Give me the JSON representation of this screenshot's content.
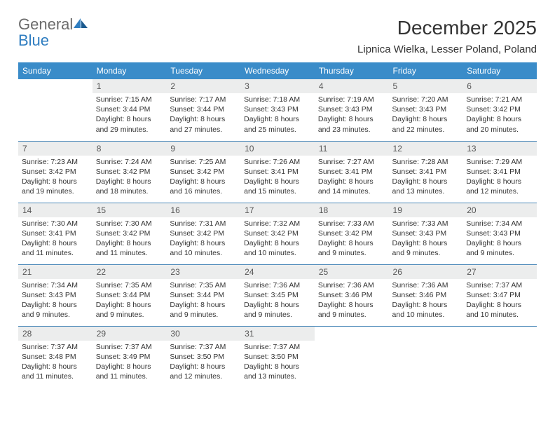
{
  "brand": {
    "general": "General",
    "blue": "Blue"
  },
  "title": "December 2025",
  "location": "Lipnica Wielka, Lesser Poland, Poland",
  "colors": {
    "header_bg": "#3a8cc9",
    "daynum_bg": "#eceded",
    "row_border": "#4c89b9",
    "logo_blue": "#2f7dc0",
    "logo_gray": "#6b6b6b"
  },
  "weekdays": [
    "Sunday",
    "Monday",
    "Tuesday",
    "Wednesday",
    "Thursday",
    "Friday",
    "Saturday"
  ],
  "weeks": [
    [
      null,
      {
        "n": "1",
        "sr": "Sunrise: 7:15 AM",
        "ss": "Sunset: 3:44 PM",
        "d1": "Daylight: 8 hours",
        "d2": "and 29 minutes."
      },
      {
        "n": "2",
        "sr": "Sunrise: 7:17 AM",
        "ss": "Sunset: 3:44 PM",
        "d1": "Daylight: 8 hours",
        "d2": "and 27 minutes."
      },
      {
        "n": "3",
        "sr": "Sunrise: 7:18 AM",
        "ss": "Sunset: 3:43 PM",
        "d1": "Daylight: 8 hours",
        "d2": "and 25 minutes."
      },
      {
        "n": "4",
        "sr": "Sunrise: 7:19 AM",
        "ss": "Sunset: 3:43 PM",
        "d1": "Daylight: 8 hours",
        "d2": "and 23 minutes."
      },
      {
        "n": "5",
        "sr": "Sunrise: 7:20 AM",
        "ss": "Sunset: 3:43 PM",
        "d1": "Daylight: 8 hours",
        "d2": "and 22 minutes."
      },
      {
        "n": "6",
        "sr": "Sunrise: 7:21 AM",
        "ss": "Sunset: 3:42 PM",
        "d1": "Daylight: 8 hours",
        "d2": "and 20 minutes."
      }
    ],
    [
      {
        "n": "7",
        "sr": "Sunrise: 7:23 AM",
        "ss": "Sunset: 3:42 PM",
        "d1": "Daylight: 8 hours",
        "d2": "and 19 minutes."
      },
      {
        "n": "8",
        "sr": "Sunrise: 7:24 AM",
        "ss": "Sunset: 3:42 PM",
        "d1": "Daylight: 8 hours",
        "d2": "and 18 minutes."
      },
      {
        "n": "9",
        "sr": "Sunrise: 7:25 AM",
        "ss": "Sunset: 3:42 PM",
        "d1": "Daylight: 8 hours",
        "d2": "and 16 minutes."
      },
      {
        "n": "10",
        "sr": "Sunrise: 7:26 AM",
        "ss": "Sunset: 3:41 PM",
        "d1": "Daylight: 8 hours",
        "d2": "and 15 minutes."
      },
      {
        "n": "11",
        "sr": "Sunrise: 7:27 AM",
        "ss": "Sunset: 3:41 PM",
        "d1": "Daylight: 8 hours",
        "d2": "and 14 minutes."
      },
      {
        "n": "12",
        "sr": "Sunrise: 7:28 AM",
        "ss": "Sunset: 3:41 PM",
        "d1": "Daylight: 8 hours",
        "d2": "and 13 minutes."
      },
      {
        "n": "13",
        "sr": "Sunrise: 7:29 AM",
        "ss": "Sunset: 3:41 PM",
        "d1": "Daylight: 8 hours",
        "d2": "and 12 minutes."
      }
    ],
    [
      {
        "n": "14",
        "sr": "Sunrise: 7:30 AM",
        "ss": "Sunset: 3:41 PM",
        "d1": "Daylight: 8 hours",
        "d2": "and 11 minutes."
      },
      {
        "n": "15",
        "sr": "Sunrise: 7:30 AM",
        "ss": "Sunset: 3:42 PM",
        "d1": "Daylight: 8 hours",
        "d2": "and 11 minutes."
      },
      {
        "n": "16",
        "sr": "Sunrise: 7:31 AM",
        "ss": "Sunset: 3:42 PM",
        "d1": "Daylight: 8 hours",
        "d2": "and 10 minutes."
      },
      {
        "n": "17",
        "sr": "Sunrise: 7:32 AM",
        "ss": "Sunset: 3:42 PM",
        "d1": "Daylight: 8 hours",
        "d2": "and 10 minutes."
      },
      {
        "n": "18",
        "sr": "Sunrise: 7:33 AM",
        "ss": "Sunset: 3:42 PM",
        "d1": "Daylight: 8 hours",
        "d2": "and 9 minutes."
      },
      {
        "n": "19",
        "sr": "Sunrise: 7:33 AM",
        "ss": "Sunset: 3:43 PM",
        "d1": "Daylight: 8 hours",
        "d2": "and 9 minutes."
      },
      {
        "n": "20",
        "sr": "Sunrise: 7:34 AM",
        "ss": "Sunset: 3:43 PM",
        "d1": "Daylight: 8 hours",
        "d2": "and 9 minutes."
      }
    ],
    [
      {
        "n": "21",
        "sr": "Sunrise: 7:34 AM",
        "ss": "Sunset: 3:43 PM",
        "d1": "Daylight: 8 hours",
        "d2": "and 9 minutes."
      },
      {
        "n": "22",
        "sr": "Sunrise: 7:35 AM",
        "ss": "Sunset: 3:44 PM",
        "d1": "Daylight: 8 hours",
        "d2": "and 9 minutes."
      },
      {
        "n": "23",
        "sr": "Sunrise: 7:35 AM",
        "ss": "Sunset: 3:44 PM",
        "d1": "Daylight: 8 hours",
        "d2": "and 9 minutes."
      },
      {
        "n": "24",
        "sr": "Sunrise: 7:36 AM",
        "ss": "Sunset: 3:45 PM",
        "d1": "Daylight: 8 hours",
        "d2": "and 9 minutes."
      },
      {
        "n": "25",
        "sr": "Sunrise: 7:36 AM",
        "ss": "Sunset: 3:46 PM",
        "d1": "Daylight: 8 hours",
        "d2": "and 9 minutes."
      },
      {
        "n": "26",
        "sr": "Sunrise: 7:36 AM",
        "ss": "Sunset: 3:46 PM",
        "d1": "Daylight: 8 hours",
        "d2": "and 10 minutes."
      },
      {
        "n": "27",
        "sr": "Sunrise: 7:37 AM",
        "ss": "Sunset: 3:47 PM",
        "d1": "Daylight: 8 hours",
        "d2": "and 10 minutes."
      }
    ],
    [
      {
        "n": "28",
        "sr": "Sunrise: 7:37 AM",
        "ss": "Sunset: 3:48 PM",
        "d1": "Daylight: 8 hours",
        "d2": "and 11 minutes."
      },
      {
        "n": "29",
        "sr": "Sunrise: 7:37 AM",
        "ss": "Sunset: 3:49 PM",
        "d1": "Daylight: 8 hours",
        "d2": "and 11 minutes."
      },
      {
        "n": "30",
        "sr": "Sunrise: 7:37 AM",
        "ss": "Sunset: 3:50 PM",
        "d1": "Daylight: 8 hours",
        "d2": "and 12 minutes."
      },
      {
        "n": "31",
        "sr": "Sunrise: 7:37 AM",
        "ss": "Sunset: 3:50 PM",
        "d1": "Daylight: 8 hours",
        "d2": "and 13 minutes."
      },
      null,
      null,
      null
    ]
  ]
}
